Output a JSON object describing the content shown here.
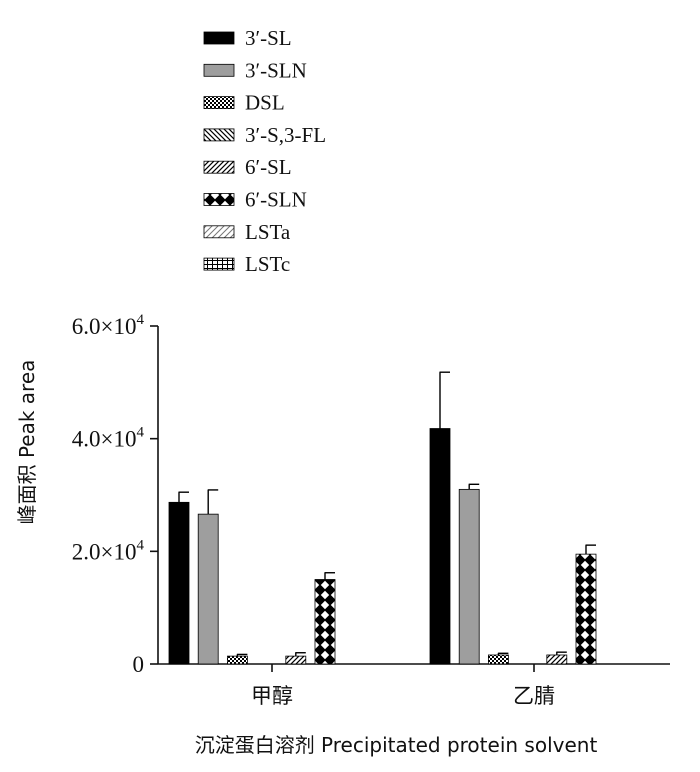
{
  "chart_data": {
    "type": "bar",
    "categories": [
      "甲醇",
      "乙腈"
    ],
    "series": [
      {
        "name": "3′-SL",
        "values": [
          28700,
          41800
        ],
        "errors": [
          1800,
          10000
        ],
        "pattern": "solid",
        "color": "#000000"
      },
      {
        "name": "3′-SLN",
        "values": [
          26600,
          31000
        ],
        "errors": [
          4300,
          900
        ],
        "pattern": "solid",
        "color": "#9e9e9e"
      },
      {
        "name": "DSL",
        "values": [
          1400,
          1600
        ],
        "errors": [
          300,
          300
        ],
        "pattern": "checker",
        "color": "#000000"
      },
      {
        "name": "3′-S,3-FL",
        "values": [
          0,
          0
        ],
        "errors": [
          0,
          0
        ],
        "pattern": "diag-down",
        "color": "#000000"
      },
      {
        "name": "6′-SL",
        "values": [
          1400,
          1600
        ],
        "errors": [
          600,
          500
        ],
        "pattern": "diag-up",
        "color": "#000000"
      },
      {
        "name": "6′-SLN",
        "values": [
          15000,
          19500
        ],
        "errors": [
          1200,
          1600
        ],
        "pattern": "cross",
        "color": "#000000"
      },
      {
        "name": "LSTa",
        "values": [
          0,
          0
        ],
        "errors": [
          0,
          0
        ],
        "pattern": "diag-light",
        "color": "#000000"
      },
      {
        "name": "LSTc",
        "values": [
          0,
          0
        ],
        "errors": [
          0,
          0
        ],
        "pattern": "grid",
        "color": "#000000"
      }
    ],
    "ylim": [
      0,
      60000
    ],
    "yticks": [
      {
        "value": 0,
        "label": "0"
      },
      {
        "value": 20000,
        "label": "2.0×10",
        "exp": "4"
      },
      {
        "value": 40000,
        "label": "4.0×10",
        "exp": "4"
      },
      {
        "value": 60000,
        "label": "6.0×10",
        "exp": "4"
      }
    ],
    "ylabel": "峰面积  Peak area",
    "xlabel": "沉淀蛋白溶剂  Precipitated protein solvent",
    "legend_position": "top-left",
    "grid": false
  }
}
